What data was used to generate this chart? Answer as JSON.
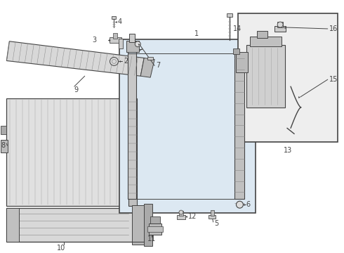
{
  "bg_color": "#ffffff",
  "line_color": "#444444",
  "fill_light": "#e8e8e8",
  "fill_mid": "#d0d0d0",
  "fill_dark": "#aaaaaa",
  "subbox_fill": "#e8eef4",
  "box13_fill": "#eeeeee"
}
